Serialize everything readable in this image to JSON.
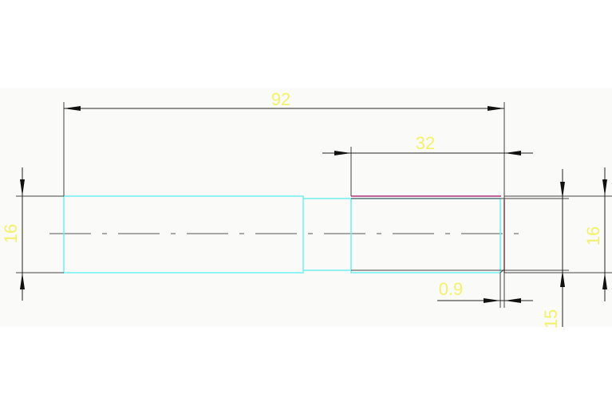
{
  "drawing": {
    "background_color": "#fafbf8",
    "part_color": "#6ff0f0",
    "chamfer_color": "#b0307a",
    "edge_color": "#d04040",
    "dimension_text_color": "#f5f06a",
    "dimensions": {
      "overall_length": "92",
      "right_section_length": "32",
      "left_diameter": "16",
      "right_diameter": "16",
      "inner_diameter": "15",
      "chamfer": "0.9"
    }
  }
}
